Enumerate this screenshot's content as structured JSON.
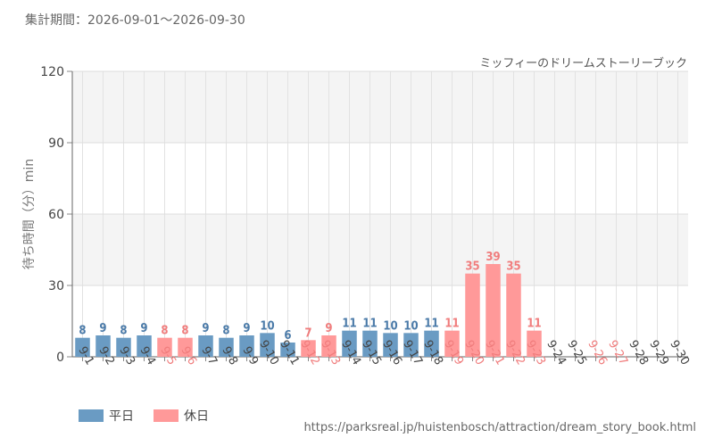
{
  "header": {
    "period_label": "集計期間：2026-09-01～2026-09-30"
  },
  "footer": {
    "source_url": "https://parksreal.jp/huistenbosch/attraction/dream_story_book.html"
  },
  "colors": {
    "weekday": "#6a9bc3",
    "holiday": "#ff9999",
    "weekday_label": "#4a7aa8",
    "holiday_label": "#f07c7c"
  },
  "chart_data": {
    "type": "bar",
    "title": "ミッフィーのドリームストーリーブック",
    "ylabel": "待ち時間（分）min",
    "xlabel": "",
    "ylim": [
      0,
      120
    ],
    "yticks": [
      0,
      30,
      60,
      90,
      120
    ],
    "grid": true,
    "legend_position": "bottom-left",
    "legend": [
      {
        "key": "weekday",
        "label": "平日"
      },
      {
        "key": "holiday",
        "label": "休日"
      }
    ],
    "categories": [
      "9-1",
      "9-2",
      "9-3",
      "9-4",
      "9-5",
      "9-6",
      "9-7",
      "9-8",
      "9-9",
      "9-10",
      "9-11",
      "9-12",
      "9-13",
      "9-14",
      "9-15",
      "9-16",
      "9-17",
      "9-18",
      "9-19",
      "9-20",
      "9-21",
      "9-22",
      "9-23",
      "9-24",
      "9-25",
      "9-26",
      "9-27",
      "9-28",
      "9-29",
      "9-30"
    ],
    "values": [
      8,
      9,
      8,
      9,
      8,
      8,
      9,
      8,
      9,
      10,
      6,
      7,
      9,
      11,
      11,
      10,
      10,
      11,
      11,
      35,
      39,
      35,
      11,
      null,
      null,
      null,
      null,
      null,
      null,
      null
    ],
    "day_type": [
      "weekday",
      "weekday",
      "weekday",
      "weekday",
      "holiday",
      "holiday",
      "weekday",
      "weekday",
      "weekday",
      "weekday",
      "weekday",
      "holiday",
      "holiday",
      "weekday",
      "weekday",
      "weekday",
      "weekday",
      "weekday",
      "holiday",
      "holiday",
      "holiday",
      "holiday",
      "holiday",
      "weekday",
      "weekday",
      "holiday",
      "holiday",
      "weekday",
      "weekday",
      "weekday"
    ]
  }
}
